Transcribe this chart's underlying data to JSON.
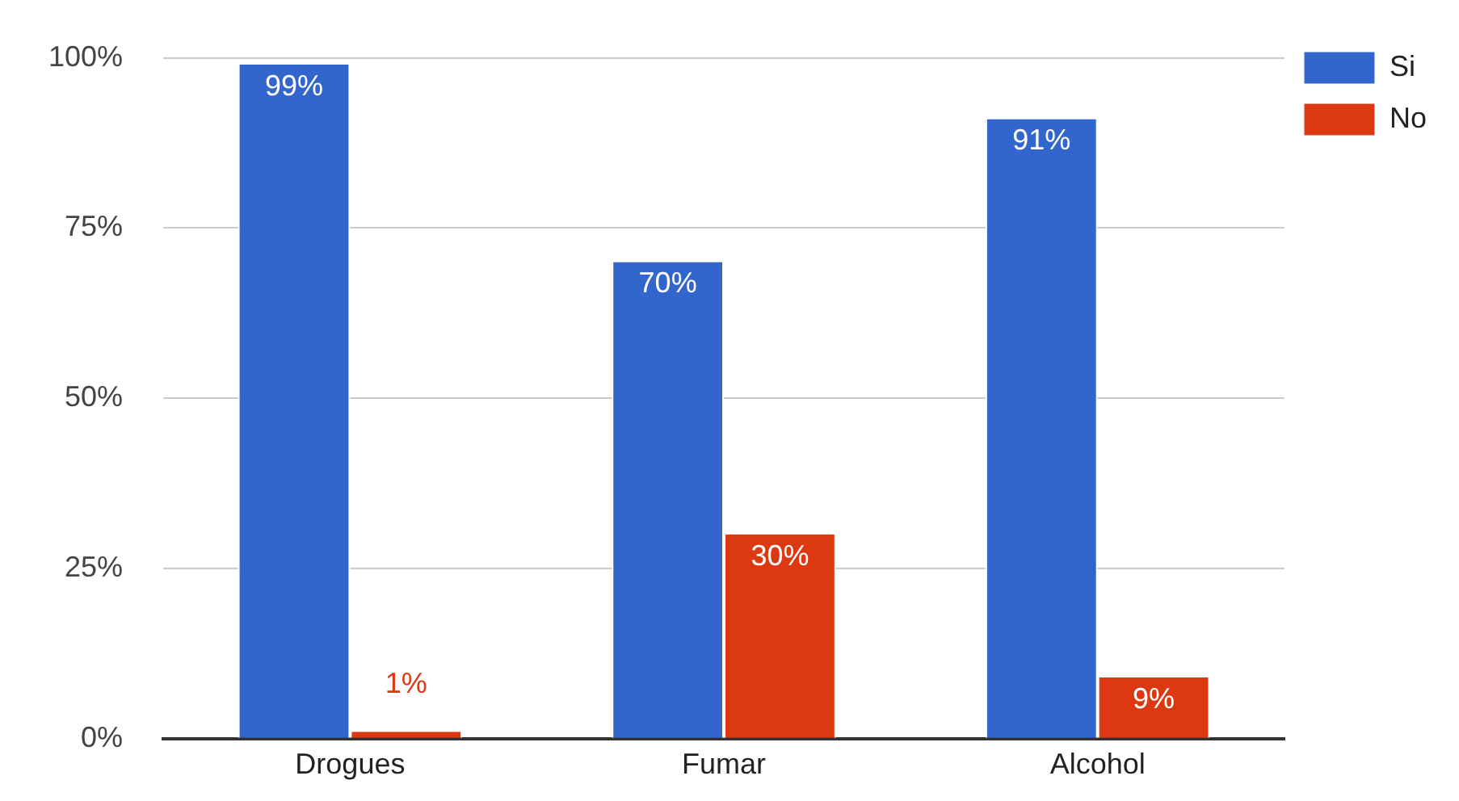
{
  "chart_data": {
    "type": "bar",
    "categories": [
      "Drogues",
      "Fumar",
      "Alcohol"
    ],
    "series": [
      {
        "name": "Si",
        "color": "#3366cc",
        "values": [
          99,
          70,
          91
        ],
        "value_labels": [
          "99%",
          "70%",
          "91%"
        ]
      },
      {
        "name": "No",
        "color": "#dc3912",
        "values": [
          1,
          30,
          9
        ],
        "value_labels": [
          "1%",
          "30%",
          "9%"
        ]
      }
    ],
    "ylim": [
      0,
      100
    ],
    "yticks": [
      {
        "value": 0,
        "label": "0%"
      },
      {
        "value": 25,
        "label": "25%"
      },
      {
        "value": 50,
        "label": "50%"
      },
      {
        "value": 75,
        "label": "75%"
      },
      {
        "value": 100,
        "label": "100%"
      }
    ],
    "grid": "y",
    "legend": "top right"
  }
}
